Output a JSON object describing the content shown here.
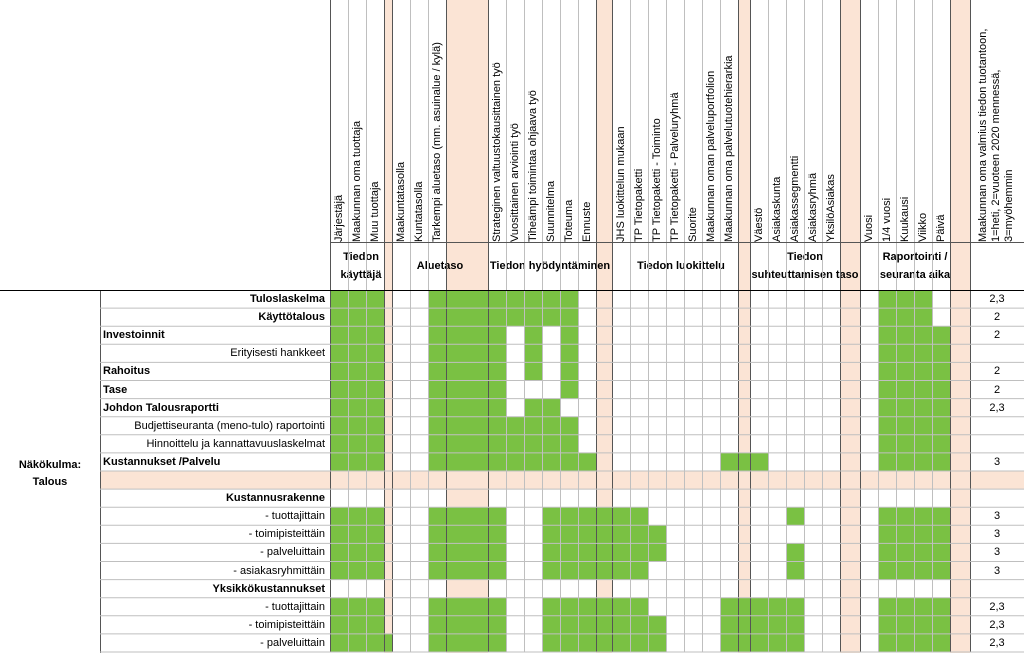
{
  "columns": [
    {
      "label": "Järjestäjä"
    },
    {
      "label": "Maakunnan oma tuottaja"
    },
    {
      "label": "Muu tuottaja"
    },
    {
      "label": ""
    },
    {
      "label": "Maakuntatasolla"
    },
    {
      "label": "Kuntatasolla"
    },
    {
      "label": "Tarkempi aluetaso (mm. asuinalue / kylä)"
    },
    {
      "label": ""
    },
    {
      "label": "Strateginen valtuustokausittainen työ"
    },
    {
      "label": "Vuosittainen arviointi työ"
    },
    {
      "label": "Tiheämpi toimintaa ohjaava työ"
    },
    {
      "label": "Suunnitelma"
    },
    {
      "label": "Toteuma"
    },
    {
      "label": "Ennuste"
    },
    {
      "label": ""
    },
    {
      "label": "JHS luokittelun mukaan"
    },
    {
      "label": "TP Tietopaketti"
    },
    {
      "label": "TP Tietopaketti - Toiminto"
    },
    {
      "label": "TP Tietopaketti - Palveluryhmä"
    },
    {
      "label": "Suorite"
    },
    {
      "label": "Maakunnan oman palveluportfolion"
    },
    {
      "label": "Maakunnan oma palvelutuotehierarkia"
    },
    {
      "label": ""
    },
    {
      "label": "Väestö"
    },
    {
      "label": "Asiakaskunta"
    },
    {
      "label": "Asiakassegmentti"
    },
    {
      "label": "Asiakasryhmä"
    },
    {
      "label": "YksilöAsiakas"
    },
    {
      "label": ""
    },
    {
      "label": "Vuosi"
    },
    {
      "label": "1/4 vuosi"
    },
    {
      "label": "Kuukausi"
    },
    {
      "label": "Viikko"
    },
    {
      "label": "Päivä"
    },
    {
      "label": ""
    },
    {
      "label": "Maakunnan oma valmius tiedon tuotantoon, 1=heti, 2=vuoteen 2020 mennessä, 3=myöhemmin"
    }
  ],
  "groups": [
    {
      "label": "Tiedon käyttäjä"
    },
    {
      "label": "Aluetaso"
    },
    {
      "label": "Tiedon hyödyntäminen"
    },
    {
      "label": "Tiedon luokittelu"
    },
    {
      "label": "Tiedon suhteuttamisen taso"
    },
    {
      "label": "Raportointi / seuranta aika"
    }
  ],
  "side_label": "Näkökulma: Talous",
  "colors": {
    "green": "#7ac143",
    "peach": "#fbe4d5",
    "grid": "#bfbfbf",
    "border": "#000000"
  },
  "rows": [
    {
      "label": "Tuloslaskelma",
      "value": "2,3",
      "g": "111000111111100000000000000000111000"
    },
    {
      "label": "Käyttötalous",
      "value": "2",
      "g": "111000111111100000000000000000111000"
    },
    {
      "label": "Investoinnit",
      "value": "2",
      "g": "111000111010100000000000000000111100"
    },
    {
      "label": "Erityisesti hankkeet",
      "value": "",
      "g": "111000111010100000000000000000111100"
    },
    {
      "label": "Rahoitus",
      "value": "2",
      "g": "111000111010100000000000000000111100"
    },
    {
      "label": "Tase",
      "value": "2",
      "g": "111000111000100000000000000000111100"
    },
    {
      "label": "Johdon Talousraportti",
      "value": "2,3",
      "g": "111000111011000000000000000000111100"
    },
    {
      "label": "Budjettiseuranta (meno-tulo) raportointi",
      "value": "",
      "g": "111000111111100000000000000000111100"
    },
    {
      "label": "Hinnoittelu ja kannattavuuslaskelmat",
      "value": "",
      "g": "111000111111100000000000000000111100"
    },
    {
      "label": "Kustannukset /Palvelu",
      "value": "3",
      "g": "111000111111110000000111000000111100"
    },
    {
      "label": "",
      "value": "",
      "g": "",
      "sep": true
    },
    {
      "label": "Kustannusrakenne",
      "value": "",
      "g": ""
    },
    {
      "label": "- tuottajittain",
      "value": "3",
      "g": "111000111001111110000000010000111100"
    },
    {
      "label": "- toimipisteittäin",
      "value": "3",
      "g": "111000111001111111000000000000111100"
    },
    {
      "label": "- palveluittain",
      "value": "3",
      "g": "111000111001111111000000010000111100"
    },
    {
      "label": "- asiakasryhmittäin",
      "value": "3",
      "g": "111000111001111110000000010000111100"
    },
    {
      "label": "Yksikkökustannukset",
      "value": "",
      "g": ""
    },
    {
      "label": "- tuottajittain",
      "value": "2,3",
      "g": "111000111001111110000111110000111100"
    },
    {
      "label": "- toimipisteittäin",
      "value": "2,3",
      "g": "111000111001111111000111110000111100"
    },
    {
      "label": "- palveluittain",
      "value": "2,3",
      "g": "111100111001111111000111110000111100"
    }
  ]
}
